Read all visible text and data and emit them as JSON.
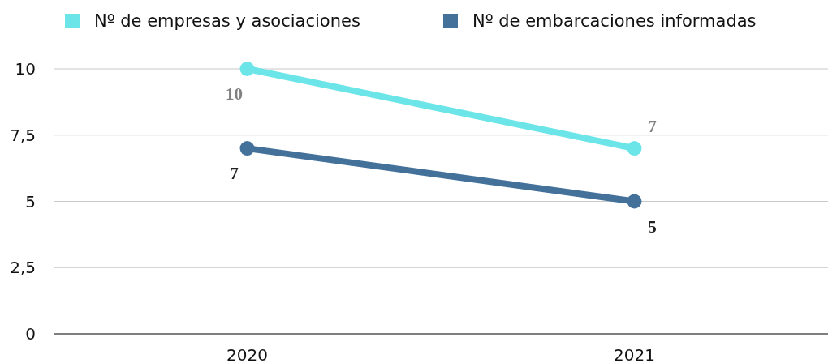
{
  "chart_data": {
    "type": "line",
    "categories": [
      "2020",
      "2021"
    ],
    "series": [
      {
        "name": "Nº de empresas y asociaciones",
        "color": "#6ce5e8",
        "values": [
          10,
          7
        ]
      },
      {
        "name": "Nº de embarcaciones informadas",
        "color": "#44719a",
        "values": [
          7,
          5
        ]
      }
    ],
    "ylim": [
      0,
      10
    ],
    "yticks": [
      0,
      {
        "value": 2.5,
        "label": "2,5"
      },
      5,
      {
        "value": 7.5,
        "label": "7,5"
      },
      10
    ],
    "grid": "y",
    "legend": "top left",
    "marker": "circle",
    "line_style": "solid",
    "data_labels": true
  }
}
